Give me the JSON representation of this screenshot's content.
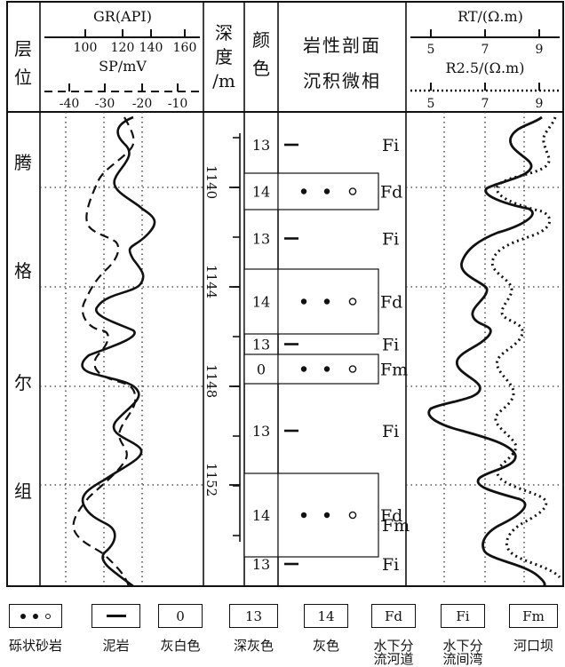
{
  "header": {
    "layer": "层\n位",
    "gr_title": "GR(API)",
    "gr_ticks": [
      "100",
      "120",
      "140",
      "160"
    ],
    "sp_title": "SP/mV",
    "sp_ticks": [
      "-40",
      "-30",
      "-20",
      "-10"
    ],
    "depth_title": "深\n度\n/m",
    "color_title": "颜\n色",
    "lith_title1": "岩性剖面",
    "lith_title2": "沉积微相",
    "rt_title": "RT/(Ω.m)",
    "rt_ticks": [
      "5",
      "7",
      "9"
    ],
    "r25_title": "R2.5/(Ω.m)",
    "r25_ticks": [
      "5",
      "7",
      "9"
    ]
  },
  "formation": [
    "腾",
    "格",
    "尔",
    "组"
  ],
  "depth_labels": [
    "1140",
    "1144",
    "1148",
    "1152"
  ],
  "colors": {
    "ink": "#111111",
    "grid_dot": "#333333",
    "box_fill": "#ffffff"
  },
  "intervals": [
    {
      "color_code": "13",
      "lith": "mudstone",
      "facies": "Fi"
    },
    {
      "color_code": "14",
      "lith": "pebbly-sandstone",
      "facies": "Fd"
    },
    {
      "color_code": "13",
      "lith": "mudstone",
      "facies": "Fi"
    },
    {
      "color_code": "14",
      "lith": "pebbly-sandstone",
      "facies": "Fd"
    },
    {
      "color_code": "13",
      "lith": "mudstone",
      "facies": "Fi"
    },
    {
      "color_code": "0",
      "lith": "pebbly-sandstone",
      "facies": "Fm"
    },
    {
      "color_code": "13",
      "lith": "mudstone",
      "facies": "Fi"
    },
    {
      "color_code": "14",
      "lith": "pebbly-sandstone",
      "facies": "Fd"
    },
    {
      "color_code": "",
      "lith": "",
      "facies": "Fm"
    },
    {
      "color_code": "13",
      "lith": "mudstone",
      "facies": "Fi"
    }
  ],
  "legend": [
    {
      "symbol": "pebbly",
      "box": "",
      "label": "砾状砂岩"
    },
    {
      "symbol": "mud",
      "box": "",
      "label": "泥岩"
    },
    {
      "symbol": "text",
      "box": "0",
      "label": "灰白色"
    },
    {
      "symbol": "text",
      "box": "13",
      "label": "深灰色"
    },
    {
      "symbol": "text",
      "box": "14",
      "label": "灰色"
    },
    {
      "symbol": "text",
      "box": "Fd",
      "label": "水下分\n流河道"
    },
    {
      "symbol": "text",
      "box": "Fi",
      "label": "水下分\n流间湾"
    },
    {
      "symbol": "text",
      "box": "Fm",
      "label": "河口坝"
    }
  ]
}
